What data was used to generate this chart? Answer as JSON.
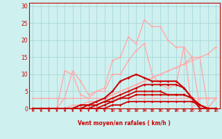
{
  "bg_color": "#cef0ef",
  "grid_color": "#a8d8d8",
  "line_color_light": "#ff9999",
  "line_color_dark": "#cc0000",
  "xlabel": "Vent moyen/en rafales ( km/h )",
  "xlim": [
    -0.5,
    23.5
  ],
  "ylim": [
    0,
    31
  ],
  "xticks": [
    0,
    1,
    2,
    3,
    4,
    5,
    6,
    7,
    8,
    9,
    10,
    11,
    12,
    13,
    14,
    15,
    16,
    17,
    18,
    19,
    20,
    21,
    22,
    23
  ],
  "yticks": [
    0,
    5,
    10,
    15,
    20,
    25,
    30
  ],
  "series": [
    {
      "x": [
        0,
        1,
        2,
        3,
        4,
        5,
        6,
        7,
        8,
        9,
        10,
        11,
        12,
        13,
        14,
        15,
        16,
        17,
        18,
        19,
        20,
        21,
        22,
        23
      ],
      "y": [
        3,
        3,
        3,
        3,
        3,
        3,
        3,
        3,
        3,
        3,
        3,
        3,
        3,
        3,
        3,
        3,
        3,
        3,
        3,
        3,
        3,
        3,
        3,
        3
      ],
      "color": "#ffaaaa",
      "lw": 1.0,
      "marker": "D",
      "ms": 1.8
    },
    {
      "x": [
        0,
        1,
        2,
        3,
        4,
        5,
        6,
        7,
        8,
        9,
        10,
        11,
        12,
        13,
        14,
        15,
        16,
        17,
        18,
        19,
        20,
        21,
        22,
        23
      ],
      "y": [
        0,
        0,
        0,
        0,
        0,
        1,
        1,
        2,
        2,
        3,
        4,
        5,
        6,
        7,
        8,
        9,
        10,
        11,
        12,
        13,
        15,
        15,
        0,
        3
      ],
      "color": "#ffaaaa",
      "lw": 1.0,
      "marker": "D",
      "ms": 1.8
    },
    {
      "x": [
        0,
        1,
        2,
        3,
        4,
        5,
        6,
        7,
        8,
        9,
        10,
        11,
        12,
        13,
        14,
        15,
        16,
        17,
        18,
        19,
        20,
        21,
        22,
        23
      ],
      "y": [
        0,
        0,
        0,
        0,
        0,
        0,
        1,
        1,
        2,
        3,
        4,
        5,
        6,
        7,
        8,
        9,
        10,
        11,
        12,
        13,
        14,
        15,
        16,
        18
      ],
      "color": "#ffaaaa",
      "lw": 1.0,
      "marker": "D",
      "ms": 1.8
    },
    {
      "x": [
        0,
        1,
        2,
        3,
        4,
        5,
        6,
        7,
        8,
        9,
        10,
        11,
        12,
        13,
        14,
        15,
        16,
        17,
        18,
        19,
        20,
        21,
        22,
        23
      ],
      "y": [
        0,
        0,
        0,
        0,
        11,
        10,
        4,
        3,
        5,
        6,
        14,
        15,
        21,
        19,
        26,
        24,
        24,
        20,
        18,
        18,
        0,
        3,
        3,
        3
      ],
      "color": "#ffaaaa",
      "lw": 1.0,
      "marker": "D",
      "ms": 1.8
    },
    {
      "x": [
        0,
        1,
        2,
        3,
        4,
        5,
        6,
        7,
        8,
        9,
        10,
        11,
        12,
        13,
        14,
        15,
        16,
        17,
        18,
        19,
        20,
        21,
        22,
        23
      ],
      "y": [
        0,
        0,
        0,
        0,
        3,
        11,
        8,
        4,
        5,
        5,
        10,
        10,
        14,
        17,
        19,
        10,
        7,
        6,
        7,
        18,
        15,
        0,
        0,
        3
      ],
      "color": "#ffaaaa",
      "lw": 1.0,
      "marker": "D",
      "ms": 1.8
    },
    {
      "x": [
        0,
        1,
        2,
        3,
        4,
        5,
        6,
        7,
        8,
        9,
        10,
        11,
        12,
        13,
        14,
        15,
        16,
        17,
        18,
        19,
        20,
        21,
        22,
        23
      ],
      "y": [
        0,
        0,
        0,
        0,
        0,
        0,
        1,
        1,
        2,
        3,
        5,
        8,
        9,
        10,
        9,
        8,
        8,
        8,
        8,
        6,
        3,
        0,
        0,
        0
      ],
      "color": "#cc0000",
      "lw": 1.5,
      "marker": "D",
      "ms": 2.0
    },
    {
      "x": [
        0,
        1,
        2,
        3,
        4,
        5,
        6,
        7,
        8,
        9,
        10,
        11,
        12,
        13,
        14,
        15,
        16,
        17,
        18,
        19,
        20,
        21,
        22,
        23
      ],
      "y": [
        0,
        0,
        0,
        0,
        0,
        0,
        0,
        0,
        1,
        2,
        3,
        4,
        5,
        6,
        7,
        7,
        7,
        7,
        7,
        6,
        3,
        1,
        0,
        0
      ],
      "color": "#cc0000",
      "lw": 1.3,
      "marker": "D",
      "ms": 2.0
    },
    {
      "x": [
        0,
        1,
        2,
        3,
        4,
        5,
        6,
        7,
        8,
        9,
        10,
        11,
        12,
        13,
        14,
        15,
        16,
        17,
        18,
        19,
        20,
        21,
        22,
        23
      ],
      "y": [
        0,
        0,
        0,
        0,
        0,
        0,
        0,
        0,
        0,
        1,
        2,
        3,
        4,
        5,
        5,
        5,
        5,
        4,
        4,
        4,
        3,
        1,
        0,
        0
      ],
      "color": "#cc0000",
      "lw": 1.3,
      "marker": "D",
      "ms": 2.0
    },
    {
      "x": [
        0,
        1,
        2,
        3,
        4,
        5,
        6,
        7,
        8,
        9,
        10,
        11,
        12,
        13,
        14,
        15,
        16,
        17,
        18,
        19,
        20,
        21,
        22,
        23
      ],
      "y": [
        0,
        0,
        0,
        0,
        0,
        0,
        0,
        1,
        1,
        2,
        2,
        3,
        3,
        4,
        4,
        4,
        4,
        4,
        4,
        4,
        3,
        1,
        0,
        0
      ],
      "color": "#cc0000",
      "lw": 1.3,
      "marker": "D",
      "ms": 2.0
    },
    {
      "x": [
        0,
        1,
        2,
        3,
        4,
        5,
        6,
        7,
        8,
        9,
        10,
        11,
        12,
        13,
        14,
        15,
        16,
        17,
        18,
        19,
        20,
        21,
        22,
        23
      ],
      "y": [
        0,
        0,
        0,
        0,
        0,
        0,
        0,
        0,
        0,
        0,
        1,
        1,
        2,
        2,
        2,
        2,
        2,
        2,
        2,
        2,
        2,
        1,
        0,
        0
      ],
      "color": "#cc0000",
      "lw": 1.3,
      "marker": "D",
      "ms": 2.0
    }
  ]
}
